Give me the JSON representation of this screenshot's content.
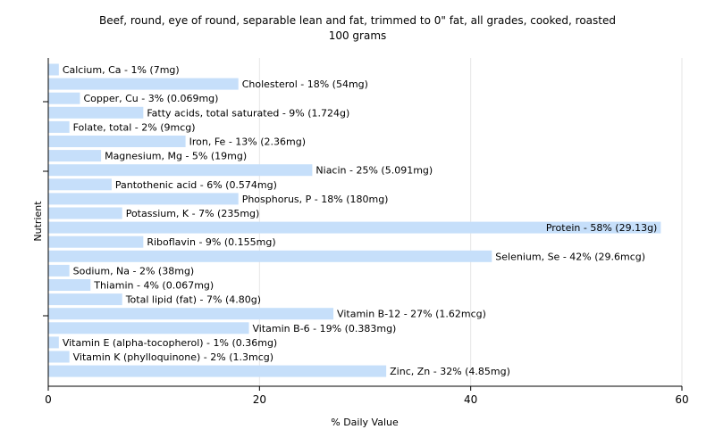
{
  "chart_data": {
    "type": "bar",
    "orientation": "horizontal",
    "title": "Beef, round, eye of round, separable lean and fat, trimmed to 0\" fat, all grades, cooked, roasted",
    "subtitle": "100 grams",
    "xlabel": "% Daily Value",
    "ylabel": "Nutrient",
    "xlim": [
      0,
      60
    ],
    "xticks": [
      0,
      20,
      40,
      60
    ],
    "grid": true,
    "colors": {
      "bar": "#c6dffa",
      "grid": "#e6e6e6",
      "axis": "#000000"
    },
    "categories": [
      "Calcium, Ca",
      "Cholesterol",
      "Copper, Cu",
      "Fatty acids, total saturated",
      "Folate, total",
      "Iron, Fe",
      "Magnesium, Mg",
      "Niacin",
      "Pantothenic acid",
      "Phosphorus, P",
      "Potassium, K",
      "Protein",
      "Riboflavin",
      "Selenium, Se",
      "Sodium, Na",
      "Thiamin",
      "Total lipid (fat)",
      "Vitamin B-12",
      "Vitamin B-6",
      "Vitamin E (alpha-tocopherol)",
      "Vitamin K (phylloquinone)",
      "Zinc, Zn"
    ],
    "values": [
      1,
      18,
      3,
      9,
      2,
      13,
      5,
      25,
      6,
      18,
      7,
      58,
      9,
      42,
      2,
      4,
      7,
      27,
      19,
      1,
      2,
      32
    ],
    "labels": [
      "Calcium, Ca - 1% (7mg)",
      "Cholesterol - 18% (54mg)",
      "Copper, Cu - 3% (0.069mg)",
      "Fatty acids, total saturated - 9% (1.724g)",
      "Folate, total - 2% (9mcg)",
      "Iron, Fe - 13% (2.36mg)",
      "Magnesium, Mg - 5% (19mg)",
      "Niacin - 25% (5.091mg)",
      "Pantothenic acid - 6% (0.574mg)",
      "Phosphorus, P - 18% (180mg)",
      "Potassium, K - 7% (235mg)",
      "Protein - 58% (29.13g)",
      "Riboflavin - 9% (0.155mg)",
      "Selenium, Se - 42% (29.6mcg)",
      "Sodium, Na - 2% (38mg)",
      "Thiamin - 4% (0.067mg)",
      "Total lipid (fat) - 7% (4.80g)",
      "Vitamin B-12 - 27% (1.62mcg)",
      "Vitamin B-6 - 19% (0.383mg)",
      "Vitamin E (alpha-tocopherol) - 1% (0.36mg)",
      "Vitamin K (phylloquinone) - 2% (1.3mcg)",
      "Zinc, Zn - 32% (4.85mg)"
    ]
  }
}
